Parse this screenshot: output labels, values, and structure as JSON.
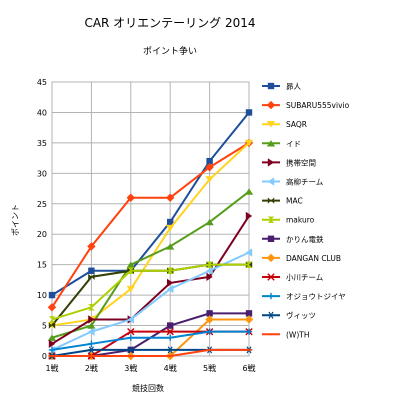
{
  "chart_data": {
    "type": "line",
    "title": "CAR オリエンテーリング 2014",
    "subtitle": "ポイント争い",
    "xlabel": "競技回数",
    "ylabel": "ポイント",
    "categories": [
      "1戦",
      "2戦",
      "3戦",
      "4戦",
      "5戦",
      "6戦"
    ],
    "ylim": [
      0,
      45
    ],
    "ytick_step": 5,
    "grid": true,
    "legend_position": "right",
    "series": [
      {
        "name": "昴人",
        "color": "#1f4e9a",
        "marker": "square",
        "values": [
          10,
          14,
          14,
          22,
          32,
          40
        ]
      },
      {
        "name": "SUBARU555vivio",
        "color": "#ff420e",
        "marker": "diamond",
        "values": [
          8,
          18,
          26,
          26,
          31,
          35
        ]
      },
      {
        "name": "SAQR",
        "color": "#ffd320",
        "marker": "triangle-down",
        "values": [
          5,
          6,
          11,
          21,
          29,
          35
        ]
      },
      {
        "name": "イド",
        "color": "#579d1c",
        "marker": "triangle-up",
        "values": [
          3,
          5,
          15,
          18,
          22,
          27
        ]
      },
      {
        "name": "携帯空間",
        "color": "#7e0021",
        "marker": "triangle-right",
        "values": [
          2,
          6,
          6,
          12,
          13,
          23
        ]
      },
      {
        "name": "高柳チーム",
        "color": "#83caff",
        "marker": "triangle-left",
        "values": [
          1,
          4,
          6,
          11,
          14,
          17
        ]
      },
      {
        "name": "MAC",
        "color": "#314004",
        "marker": "bowtie",
        "values": [
          5,
          13,
          14,
          14,
          15,
          15
        ]
      },
      {
        "name": "makuro",
        "color": "#aecf00",
        "marker": "hourglass",
        "values": [
          6,
          8,
          14,
          14,
          15,
          15
        ]
      },
      {
        "name": "かりん電鉄",
        "color": "#4b1f6f",
        "marker": "square",
        "values": [
          0,
          0,
          1,
          5,
          7,
          7
        ]
      },
      {
        "name": "DANGAN CLUB",
        "color": "#ff950e",
        "marker": "diamond",
        "values": [
          0,
          0,
          0,
          0,
          6,
          6
        ]
      },
      {
        "name": "小川チーム",
        "color": "#c5000b",
        "marker": "x",
        "values": [
          0,
          0,
          4,
          4,
          4,
          4
        ]
      },
      {
        "name": "オジョウトジイヤ",
        "color": "#0084d1",
        "marker": "plus",
        "values": [
          1,
          2,
          3,
          3,
          4,
          4
        ]
      },
      {
        "name": "ヴィッツ",
        "color": "#004586",
        "marker": "asterisk",
        "values": [
          0,
          1,
          1,
          1,
          1,
          1
        ]
      },
      {
        "name": "(W)TH",
        "color": "#ff420e",
        "marker": "dash",
        "values": [
          0,
          0,
          0,
          0,
          1,
          1
        ]
      }
    ]
  }
}
